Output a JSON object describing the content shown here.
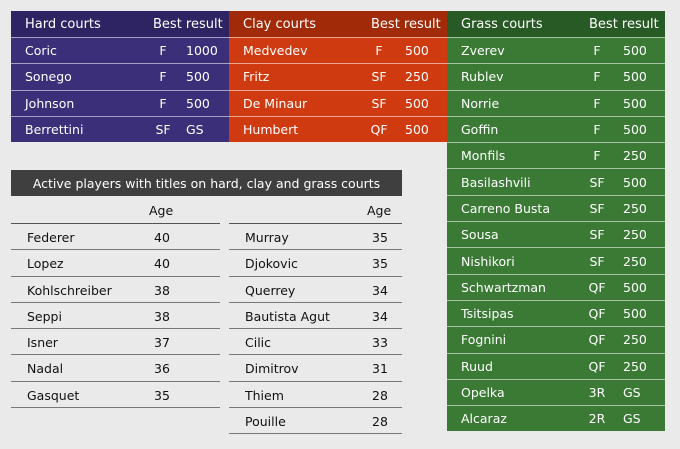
{
  "hard": {
    "title": "Hard courts",
    "best_label": "Best result",
    "rows": [
      {
        "name": "Coric",
        "level": "F",
        "points": "1000"
      },
      {
        "name": "Sonego",
        "level": "F",
        "points": "500"
      },
      {
        "name": "Johnson",
        "level": "F",
        "points": "500"
      },
      {
        "name": "Berrettini",
        "level": "SF",
        "points": "GS"
      }
    ]
  },
  "clay": {
    "title": "Clay courts",
    "best_label": "Best result",
    "rows": [
      {
        "name": "Medvedev",
        "level": "F",
        "points": "500"
      },
      {
        "name": "Fritz",
        "level": "SF",
        "points": "250"
      },
      {
        "name": "De Minaur",
        "level": "SF",
        "points": "500"
      },
      {
        "name": "Humbert",
        "level": "QF",
        "points": "500"
      }
    ]
  },
  "grass": {
    "title": "Grass courts",
    "best_label": "Best result",
    "rows": [
      {
        "name": "Zverev",
        "level": "F",
        "points": "500"
      },
      {
        "name": "Rublev",
        "level": "F",
        "points": "500"
      },
      {
        "name": "Norrie",
        "level": "F",
        "points": "500"
      },
      {
        "name": "Goffin",
        "level": "F",
        "points": "500"
      },
      {
        "name": "Monfils",
        "level": "F",
        "points": "250"
      },
      {
        "name": "Basilashvili",
        "level": "SF",
        "points": "500"
      },
      {
        "name": "Carreno Busta",
        "level": "SF",
        "points": "250"
      },
      {
        "name": "Sousa",
        "level": "SF",
        "points": "250"
      },
      {
        "name": "Nishikori",
        "level": "SF",
        "points": "250"
      },
      {
        "name": "Schwartzman",
        "level": "QF",
        "points": "500"
      },
      {
        "name": "Tsitsipas",
        "level": "QF",
        "points": "500"
      },
      {
        "name": "Fognini",
        "level": "QF",
        "points": "250"
      },
      {
        "name": "Ruud",
        "level": "QF",
        "points": "250"
      },
      {
        "name": "Opelka",
        "level": "3R",
        "points": "GS"
      },
      {
        "name": "Alcaraz",
        "level": "2R",
        "points": "GS"
      }
    ]
  },
  "active": {
    "title": "Active players with titles on hard, clay and grass courts",
    "age_label": "Age",
    "left": [
      {
        "name": "Federer",
        "age": "40"
      },
      {
        "name": "Lopez",
        "age": "40"
      },
      {
        "name": "Kohlschreiber",
        "age": "38"
      },
      {
        "name": "Seppi",
        "age": "38"
      },
      {
        "name": "Isner",
        "age": "37"
      },
      {
        "name": "Nadal",
        "age": "36"
      },
      {
        "name": "Gasquet",
        "age": "35"
      }
    ],
    "right": [
      {
        "name": "Murray",
        "age": "35"
      },
      {
        "name": "Djokovic",
        "age": "35"
      },
      {
        "name": "Querrey",
        "age": "34"
      },
      {
        "name": "Bautista Agut",
        "age": "34"
      },
      {
        "name": "Cilic",
        "age": "33"
      },
      {
        "name": "Dimitrov",
        "age": "31"
      },
      {
        "name": "Thiem",
        "age": "28"
      },
      {
        "name": "Pouille",
        "age": "28"
      }
    ]
  },
  "colors": {
    "hard": "#3b2f7a",
    "clay": "#d03a10",
    "grass": "#3a7a35",
    "banner": "#3f3f3f",
    "background": "#eaeaea"
  }
}
